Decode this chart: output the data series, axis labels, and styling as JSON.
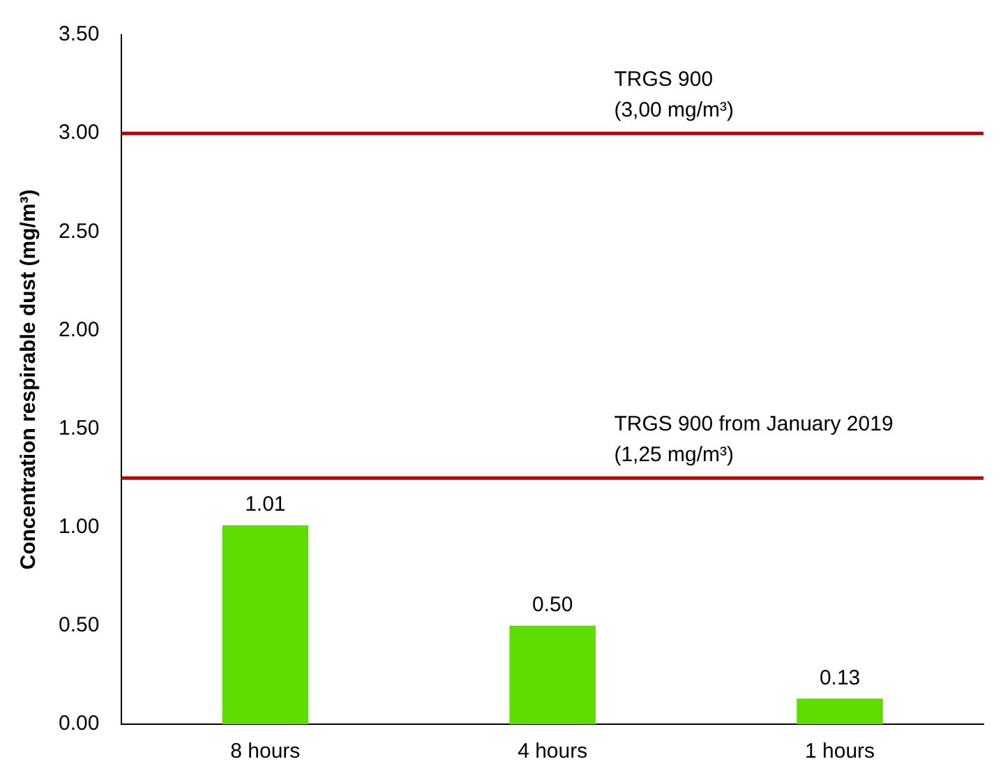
{
  "chart_data": {
    "type": "bar",
    "ylabel": "Concentration respirable dust (mg/m³)",
    "categories": [
      "8 hours",
      "4 hours",
      "1 hours"
    ],
    "values": [
      1.01,
      0.5,
      0.13
    ],
    "color": "#5fdd00",
    "value_labels": [
      "1.01",
      "0.50",
      "0.13"
    ],
    "ylim": [
      0,
      3.5
    ],
    "yticks": [
      {
        "value": 0,
        "label": "0.00"
      },
      {
        "value": 0.5,
        "label": "0.50"
      },
      {
        "value": 1,
        "label": "1.00"
      },
      {
        "value": 1.5,
        "label": "1.50"
      },
      {
        "value": 2,
        "label": "2.00"
      },
      {
        "value": 2.5,
        "label": "2.50"
      },
      {
        "value": 3,
        "label": "3.00"
      },
      {
        "value": 3.5,
        "label": "3.50"
      }
    ],
    "grid": false,
    "legend": false,
    "ref_lines": [
      {
        "axis": "y",
        "value": 3,
        "label": "TRGS 900\n(3,00 mg/m³)",
        "color": "#c00000"
      },
      {
        "axis": "y",
        "value": 1.25,
        "label": "TRGS 900 from January 2019\n(1,25 mg/m³)",
        "color": "#c00000"
      }
    ]
  }
}
